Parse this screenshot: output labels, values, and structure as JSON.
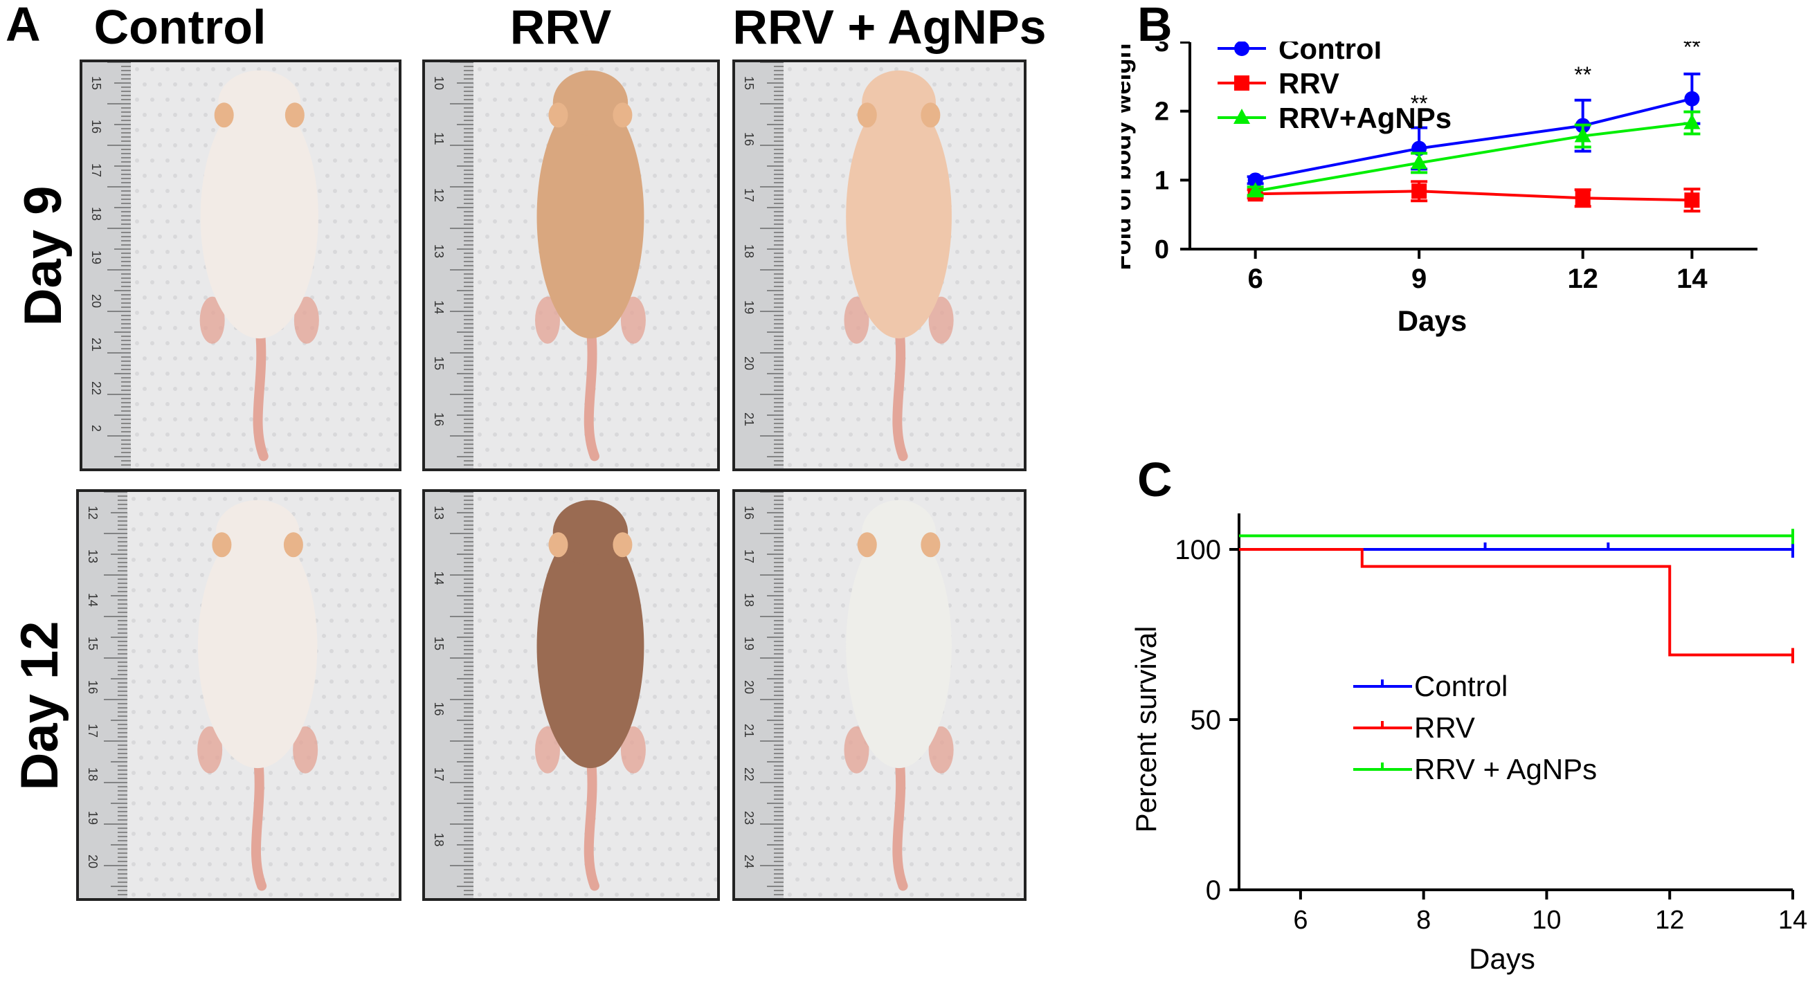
{
  "panels": {
    "a": "A",
    "b": "B",
    "c": "C"
  },
  "panel_a": {
    "columns": [
      "Control",
      "RRV",
      "RRV + AgNPs"
    ],
    "rows": [
      "Day 9",
      "Day 12"
    ],
    "rulers": [
      [
        "15",
        "16",
        "17",
        "18",
        "19",
        "20",
        "21",
        "22",
        "2"
      ],
      [
        "10",
        "11",
        "12",
        "13",
        "14",
        "15",
        "16"
      ],
      [
        "15",
        "16",
        "17",
        "18",
        "19",
        "20",
        "21"
      ],
      [
        "12",
        "13",
        "14",
        "15",
        "16",
        "17",
        "18",
        "19",
        "20"
      ],
      [
        "13",
        "14",
        "15",
        "16",
        "17",
        "18"
      ],
      [
        "16",
        "17",
        "18",
        "19",
        "20",
        "21",
        "22",
        "23",
        "24"
      ]
    ],
    "mouse_colors": {
      "control": "#f2ebe6",
      "rrv_day9": "#d9a77f",
      "agnp_day9": "#efc7ab",
      "rrv_day12": "#9a6b52",
      "agnp_day12": "#eeeeea",
      "tail": "#e3a699",
      "background": "#e9e9ea"
    }
  },
  "chart_data": [
    {
      "type": "line",
      "panel": "B",
      "title": "",
      "xlabel": "Days",
      "ylabel": "Fold of body weight",
      "x": [
        6,
        9,
        12,
        14
      ],
      "xlim": [
        4.8,
        15.2
      ],
      "ylim": [
        0,
        3
      ],
      "xticks": [
        "6",
        "9",
        "12",
        "14"
      ],
      "yticks": [
        "0",
        "1",
        "2",
        "3"
      ],
      "series": [
        {
          "name": "Control",
          "color": "#0000ff",
          "marker": "circle",
          "values": [
            1.0,
            1.46,
            1.79,
            2.18
          ],
          "err": [
            0.05,
            0.3,
            0.37,
            0.36
          ]
        },
        {
          "name": "RRV",
          "color": "#ff0000",
          "marker": "square",
          "values": [
            0.8,
            0.84,
            0.74,
            0.71
          ],
          "err": [
            0.06,
            0.14,
            0.12,
            0.16
          ]
        },
        {
          "name": "RRV+AgNPs",
          "color": "#00ee00",
          "marker": "triangle",
          "values": [
            0.84,
            1.25,
            1.64,
            1.83
          ],
          "err": [
            0.06,
            0.14,
            0.16,
            0.16
          ]
        }
      ],
      "annotations": [
        {
          "x": 9,
          "y": 2.0,
          "text": "**"
        },
        {
          "x": 12,
          "y": 2.42,
          "text": "**"
        },
        {
          "x": 14,
          "y": 2.82,
          "text": "**"
        }
      ],
      "legend": "top-left"
    },
    {
      "type": "line",
      "panel": "C",
      "title": "",
      "xlabel": "Days",
      "ylabel": "Percent survival",
      "xlim": [
        5,
        14
      ],
      "ylim": [
        0,
        100
      ],
      "xticks": [
        "6",
        "8",
        "10",
        "12",
        "14"
      ],
      "yticks": [
        "0",
        "50",
        "100"
      ],
      "series": [
        {
          "name": "Control",
          "color": "#0000ff",
          "steps": [
            [
              5,
              100
            ],
            [
              14,
              100
            ]
          ],
          "censor": [
            9,
            11
          ]
        },
        {
          "name": "RRV",
          "color": "#ff0000",
          "steps": [
            [
              5,
              100
            ],
            [
              7,
              100
            ],
            [
              7,
              95
            ],
            [
              12,
              95
            ],
            [
              12,
              69
            ],
            [
              14,
              69
            ]
          ],
          "censor": []
        },
        {
          "name": "RRV + AgNPs",
          "color": "#00ee00",
          "steps": [
            [
              5,
              104
            ],
            [
              14,
              104
            ]
          ],
          "censor": []
        }
      ],
      "legend": "center"
    }
  ]
}
